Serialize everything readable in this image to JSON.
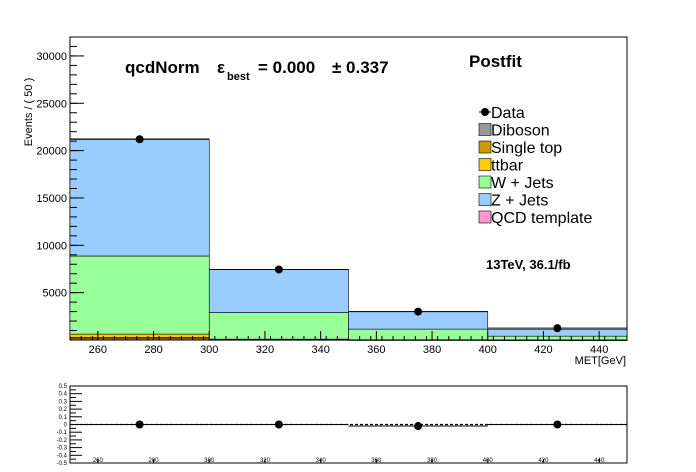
{
  "chart_data": [
    {
      "type": "bar",
      "stacked": true,
      "categories": [
        "250-300",
        "300-350",
        "350-400",
        "400-450"
      ],
      "bin_edges": [
        250,
        300,
        350,
        400,
        450
      ],
      "series": [
        {
          "name": "Diboson",
          "color": "#999999",
          "values": [
            120,
            20,
            10,
            5
          ]
        },
        {
          "name": "Single top",
          "color": "#cc9900",
          "values": [
            150,
            30,
            10,
            5
          ]
        },
        {
          "name": "ttbar",
          "color": "#ffcc00",
          "values": [
            350,
            40,
            10,
            5
          ]
        },
        {
          "name": "W + Jets",
          "color": "#99ff99",
          "values": [
            8250,
            2810,
            1120,
            390
          ]
        },
        {
          "name": "Z + Jets",
          "color": "#99ccff",
          "values": [
            12380,
            4550,
            1850,
            700
          ]
        },
        {
          "name": "QCD template",
          "color": "#ff99cc",
          "values": [
            0,
            0,
            0,
            0
          ]
        }
      ],
      "data_points": {
        "name": "Data",
        "x": [
          275,
          325,
          375,
          425
        ],
        "y": [
          21200,
          7450,
          3000,
          1250
        ]
      },
      "xlim": [
        250,
        450
      ],
      "ylim": [
        0,
        32000
      ],
      "xticks": [
        260,
        280,
        300,
        320,
        340,
        360,
        380,
        400,
        420,
        440
      ],
      "yticks": [
        5000,
        10000,
        15000,
        20000,
        25000,
        30000
      ],
      "xlabel": "MET[GeV]",
      "ylabel": "Events / ( 50 )",
      "title_parts": {
        "main": "qcdNorm",
        "epsilon": "ε",
        "sub": "best",
        "value": "= 0.000",
        "pm": "± 0.337"
      },
      "label_postfit": "Postfit",
      "luminosity_label": "13TeV, 36.1/fb",
      "legend_position": "right"
    },
    {
      "type": "scatter",
      "x": [
        275,
        325,
        375,
        425
      ],
      "y": [
        0.0,
        0.0,
        -0.02,
        0.0
      ],
      "xlim": [
        250,
        450
      ],
      "ylim": [
        -0.5,
        0.5
      ],
      "yticks": [
        -0.5,
        -0.4,
        -0.3,
        -0.2,
        -0.1,
        0,
        0.1,
        0.2,
        0.3,
        0.4,
        0.5
      ],
      "ytick_labels": [
        "-0.5",
        "-0.4",
        "-0.3",
        "-0.2",
        "-0.1",
        "0",
        "0.1",
        "0.2",
        "0.3",
        "0.4",
        "0.5"
      ],
      "xticks": [
        260,
        280,
        300,
        320,
        340,
        360,
        380,
        400,
        420,
        440
      ],
      "reference_line_y": 0
    }
  ]
}
